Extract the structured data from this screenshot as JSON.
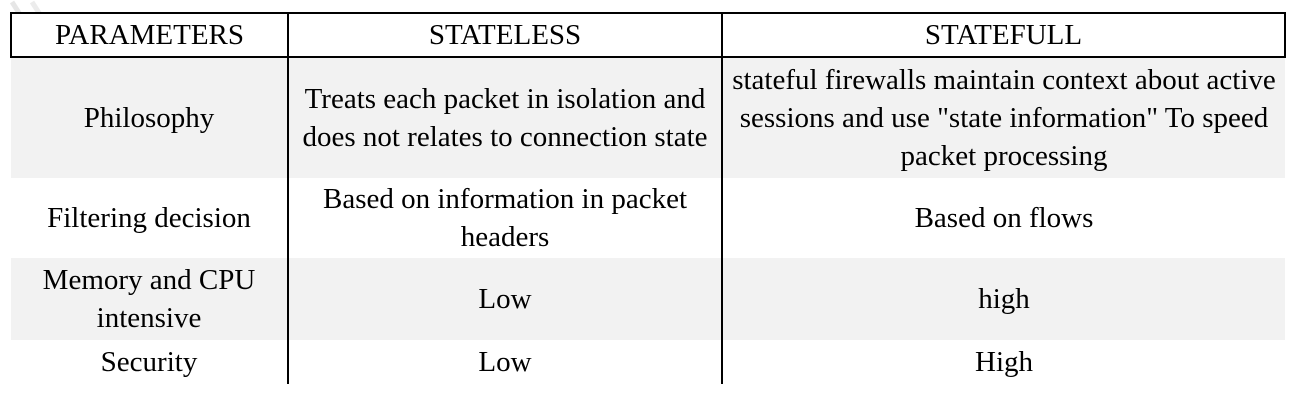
{
  "table": {
    "headers": [
      "PARAMETERS",
      "STATELESS",
      "STATEFULL"
    ],
    "rows": [
      {
        "parameter": "Philosophy",
        "stateless": "Treats each packet in isolation and does not relates to connection state",
        "statefull": "stateful firewalls maintain context about active sessions and use \"state information\" To speed packet processing"
      },
      {
        "parameter": "Filtering decision",
        "stateless": "Based on information in packet headers",
        "statefull": "Based on flows"
      },
      {
        "parameter": "Memory and CPU intensive",
        "stateless": "Low",
        "statefull": "high"
      },
      {
        "parameter": "Security",
        "stateless": "Low",
        "statefull": "High"
      }
    ]
  },
  "colors": {
    "shaded_row": "#f2f2f2",
    "border": "#000000",
    "text": "#000000"
  }
}
